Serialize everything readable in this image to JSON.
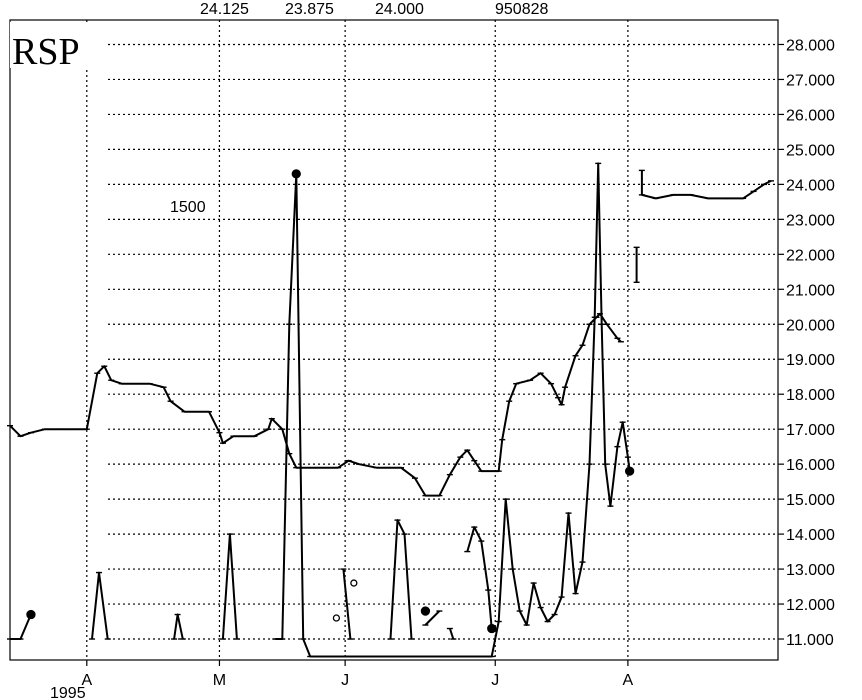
{
  "chart_data": {
    "type": "line",
    "title": "RSP",
    "header_values": [
      "24.125",
      "23.875",
      "24.000",
      "950828"
    ],
    "annotation": "1500",
    "year_label": "1995",
    "x_ticks": [
      "A",
      "M",
      "J",
      "J",
      "A"
    ],
    "y_ticks": [
      "28.000",
      "27.000",
      "26.000",
      "25.000",
      "24.000",
      "23.000",
      "22.000",
      "21.000",
      "20.000",
      "19.000",
      "18.000",
      "17.000",
      "16.000",
      "15.000",
      "14.000",
      "13.000",
      "12.000",
      "11.000"
    ],
    "ylim": [
      10.4,
      28.7
    ],
    "grid": true,
    "series": [
      {
        "points": [
          [
            0.0,
            17.1
          ],
          [
            0.3,
            16.8
          ],
          [
            0.6,
            16.9
          ],
          [
            1.0,
            17.0
          ],
          [
            1.5,
            17.0
          ],
          [
            2.0,
            17.0
          ],
          [
            2.2,
            17.0
          ],
          [
            2.5,
            18.6
          ],
          [
            2.7,
            18.8
          ],
          [
            2.9,
            18.4
          ],
          [
            3.2,
            18.3
          ],
          [
            3.6,
            18.3
          ],
          [
            4.0,
            18.3
          ],
          [
            4.4,
            18.2
          ],
          [
            4.6,
            17.8
          ],
          [
            5.0,
            17.5
          ],
          [
            5.4,
            17.5
          ],
          [
            5.7,
            17.5
          ],
          [
            6.0,
            16.9
          ],
          [
            6.1,
            16.6
          ],
          [
            6.4,
            16.8
          ],
          [
            7.0,
            16.8
          ],
          [
            7.4,
            17.0
          ],
          [
            7.5,
            17.3
          ],
          [
            7.8,
            17.0
          ],
          [
            8.0,
            16.3
          ],
          [
            8.2,
            15.9
          ],
          [
            8.8,
            15.9
          ],
          [
            9.4,
            15.9
          ],
          [
            9.7,
            16.1
          ],
          [
            10.0,
            16.0
          ],
          [
            10.5,
            15.9
          ],
          [
            10.8,
            15.9
          ],
          [
            11.2,
            15.9
          ],
          [
            11.6,
            15.6
          ],
          [
            11.9,
            15.1
          ],
          [
            12.3,
            15.1
          ],
          [
            12.6,
            15.7
          ],
          [
            12.9,
            16.2
          ],
          [
            13.1,
            16.4
          ],
          [
            13.3,
            16.1
          ],
          [
            13.5,
            15.8
          ],
          [
            14.0,
            15.8
          ],
          [
            14.1,
            16.7
          ],
          [
            14.3,
            17.8
          ],
          [
            14.5,
            18.3
          ],
          [
            14.9,
            18.4
          ],
          [
            15.2,
            18.6
          ],
          [
            15.5,
            18.3
          ],
          [
            15.7,
            17.9
          ],
          [
            15.8,
            17.7
          ],
          [
            15.9,
            18.2
          ],
          [
            16.2,
            19.1
          ],
          [
            16.4,
            19.4
          ],
          [
            16.6,
            20.0
          ],
          [
            16.8,
            20.2
          ],
          [
            16.9,
            20.3
          ],
          [
            17.1,
            20.0
          ],
          [
            17.4,
            19.6
          ],
          [
            17.5,
            19.5
          ]
        ]
      },
      {
        "points": [
          [
            7.6,
            11.0
          ],
          [
            7.8,
            11.0
          ],
          [
            8.0,
            20.0
          ],
          [
            8.2,
            24.3
          ],
          [
            8.4,
            11.0
          ],
          [
            8.6,
            10.5
          ],
          [
            13.8,
            10.5
          ],
          [
            14.0,
            11.5
          ],
          [
            14.2,
            15.0
          ],
          [
            14.4,
            13.0
          ],
          [
            14.6,
            11.8
          ],
          [
            14.8,
            11.4
          ],
          [
            15.0,
            12.6
          ],
          [
            15.2,
            11.9
          ],
          [
            15.4,
            11.5
          ],
          [
            15.6,
            11.7
          ],
          [
            15.8,
            12.2
          ],
          [
            16.0,
            14.6
          ],
          [
            16.2,
            12.3
          ],
          [
            16.4,
            13.2
          ],
          [
            16.6,
            16.0
          ],
          [
            16.75,
            20.2
          ],
          [
            16.85,
            24.6
          ],
          [
            16.95,
            20.0
          ],
          [
            17.05,
            16.0
          ],
          [
            17.2,
            14.8
          ],
          [
            17.4,
            16.5
          ],
          [
            17.55,
            17.2
          ],
          [
            17.7,
            16.2
          ],
          [
            17.75,
            15.8
          ]
        ]
      },
      {
        "points": [
          [
            18.1,
            24.4
          ],
          [
            18.1,
            23.7
          ],
          [
            18.5,
            23.6
          ],
          [
            19.0,
            23.7
          ],
          [
            19.5,
            23.7
          ],
          [
            20.0,
            23.6
          ],
          [
            20.5,
            23.6
          ],
          [
            21.0,
            23.6
          ],
          [
            21.3,
            23.8
          ],
          [
            21.6,
            24.0
          ],
          [
            21.8,
            24.1
          ]
        ]
      },
      {
        "points": [
          [
            17.95,
            22.2
          ],
          [
            17.95,
            21.2
          ]
        ]
      },
      {
        "points": [
          [
            0.0,
            11.0
          ],
          [
            0.3,
            11.0
          ],
          [
            0.6,
            11.7
          ]
        ]
      },
      {
        "points": [
          [
            2.35,
            11.0
          ],
          [
            2.55,
            12.9
          ],
          [
            2.8,
            11.0
          ]
        ]
      },
      {
        "points": [
          [
            4.7,
            11.0
          ],
          [
            4.8,
            11.7
          ],
          [
            4.95,
            11.0
          ]
        ]
      },
      {
        "points": [
          [
            6.1,
            11.0
          ],
          [
            6.3,
            14.0
          ],
          [
            6.5,
            11.0
          ]
        ]
      },
      {
        "points": [
          [
            9.55,
            13.0
          ],
          [
            9.75,
            11.0
          ]
        ]
      },
      {
        "points": [
          [
            10.9,
            11.0
          ],
          [
            11.1,
            14.4
          ],
          [
            11.3,
            14.0
          ],
          [
            11.5,
            11.0
          ]
        ]
      },
      {
        "points": [
          [
            11.9,
            11.4
          ],
          [
            12.3,
            11.8
          ]
        ]
      },
      {
        "points": [
          [
            12.6,
            11.3
          ],
          [
            12.7,
            11.0
          ]
        ]
      },
      {
        "points": [
          [
            13.1,
            13.5
          ],
          [
            13.3,
            14.2
          ],
          [
            13.5,
            13.8
          ],
          [
            13.7,
            12.4
          ],
          [
            13.8,
            11.3
          ]
        ]
      }
    ],
    "markers": [
      {
        "x": 0.6,
        "y": 11.7,
        "style": "filled"
      },
      {
        "x": 8.2,
        "y": 24.3,
        "style": "filled"
      },
      {
        "x": 11.9,
        "y": 11.8,
        "style": "filled"
      },
      {
        "x": 13.8,
        "y": 11.3,
        "style": "filled"
      },
      {
        "x": 17.75,
        "y": 15.8,
        "style": "filled"
      },
      {
        "x": 9.35,
        "y": 11.6,
        "style": "open"
      },
      {
        "x": 9.85,
        "y": 12.6,
        "style": "open"
      }
    ]
  }
}
